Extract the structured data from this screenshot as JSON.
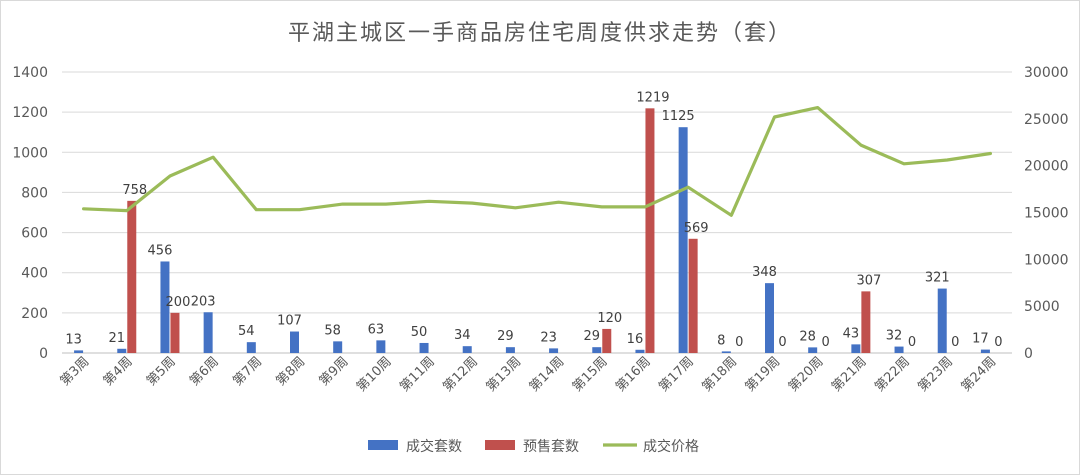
{
  "chart_data": {
    "type": "bar",
    "title": "平湖主城区一手商品房住宅周度供求走势（套）",
    "categories": [
      "第3周",
      "第4周",
      "第5周",
      "第6周",
      "第7周",
      "第8周",
      "第9周",
      "第10周",
      "第11周",
      "第12周",
      "第13周",
      "第14周",
      "第15周",
      "第16周",
      "第17周",
      "第18周",
      "第19周",
      "第20周",
      "第21周",
      "第22周",
      "第23周",
      "第24周"
    ],
    "series": [
      {
        "name": "成交套数",
        "type": "bar",
        "axis": "left",
        "color": "#4472C4",
        "values": [
          13,
          21,
          456,
          203,
          54,
          107,
          58,
          63,
          50,
          34,
          29,
          23,
          29,
          16,
          1125,
          8,
          348,
          28,
          43,
          32,
          321,
          17
        ],
        "labels": [
          "13",
          "21",
          "456",
          "203",
          "54",
          "107",
          "58",
          "63",
          "50",
          "34",
          "29",
          "23",
          "29",
          "16",
          "1125",
          "8",
          "348",
          "28",
          "43",
          "32",
          "321",
          "17"
        ]
      },
      {
        "name": "预售套数",
        "type": "bar",
        "axis": "left",
        "color": "#C0504D",
        "values": [
          null,
          758,
          200,
          null,
          null,
          null,
          null,
          null,
          null,
          null,
          null,
          null,
          120,
          1219,
          569,
          0,
          0,
          0,
          307,
          0,
          0,
          0
        ],
        "labels": [
          "",
          "758",
          "200",
          "",
          "",
          "",
          "",
          "",
          "",
          "",
          "",
          "",
          "120",
          "1219",
          "569",
          "0",
          "0",
          "0",
          "307",
          "0",
          "0",
          "0"
        ]
      },
      {
        "name": "成交价格",
        "type": "line",
        "axis": "right",
        "color": "#9BBB59",
        "values": [
          15400,
          15200,
          18900,
          20900,
          15300,
          15300,
          15900,
          15900,
          16200,
          16000,
          15500,
          16100,
          15600,
          15600,
          17700,
          14700,
          25200,
          26200,
          22200,
          20200,
          20600,
          21300
        ]
      }
    ],
    "ylim": [
      0,
      1400
    ],
    "yticks": [
      "0",
      "200",
      "400",
      "600",
      "800",
      "1000",
      "1200",
      "1400"
    ],
    "y2lim": [
      0,
      30000
    ],
    "y2ticks": [
      "0",
      "5000",
      "10000",
      "15000",
      "20000",
      "25000",
      "30000"
    ],
    "grid": true,
    "legend_position": "bottom"
  }
}
